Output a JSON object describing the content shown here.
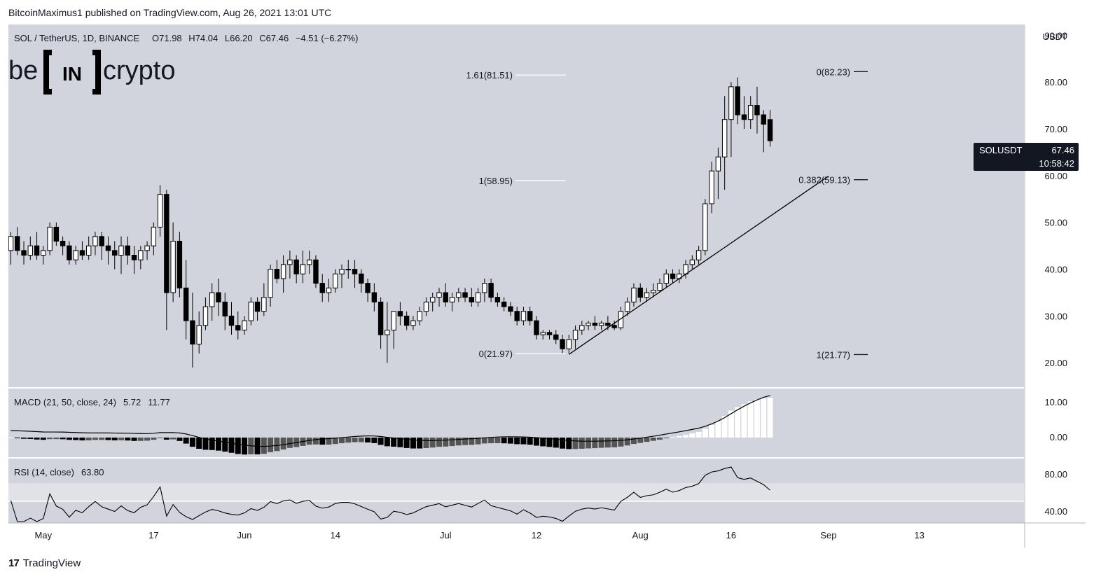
{
  "header": {
    "publisher": "BitcoinMaximus1 published on TradingView.com, Aug 26, 2021 13:01 UTC"
  },
  "legend": {
    "symbol": "SOL / TetherUS, 1D, BINANCE",
    "o_label": "O",
    "o": "71.98",
    "h_label": "H",
    "h": "74.04",
    "l_label": "L",
    "l": "66.20",
    "c_label": "C",
    "c": "67.46",
    "change": "−4.51 (−6.27%)"
  },
  "logo": {
    "left": "be",
    "mid": "IN",
    "right": "crypto"
  },
  "price_tag": {
    "symbol": "SOLUSDT",
    "price": "67.46",
    "countdown": "10:58:42"
  },
  "macd": {
    "label": "MACD (21, 50, close, 24)",
    "v1": "5.72",
    "v2": "11.77"
  },
  "rsi": {
    "label": "RSI (14, close)",
    "value": "63.80"
  },
  "footer": {
    "brand": "TradingView"
  },
  "colors": {
    "bg": "#d1d4dc",
    "up": "#ffffff",
    "down": "#000000",
    "grid_text": "#131722",
    "tag_bg": "#131722"
  },
  "chart_data": {
    "type": "candlestick",
    "title": "SOL / TetherUS, 1D, BINANCE",
    "currency_label": "USDT",
    "price_ticks": [
      20,
      30,
      40,
      50,
      60,
      70,
      80,
      90
    ],
    "price_tick_labels": [
      "20.00",
      "30.00",
      "40.00",
      "50.00",
      "60.00",
      "70.00",
      "80.00",
      "90.00"
    ],
    "ylim": [
      14.8,
      92.3
    ],
    "macd_ticks": [
      "0.00",
      "10.00"
    ],
    "rsi_ticks": [
      "40.00",
      "80.00"
    ],
    "x_labels": [
      "May",
      "17",
      "Jun",
      "14",
      "Jul",
      "12",
      "Aug",
      "16",
      "Sep",
      "13"
    ],
    "candles_ohlc": [
      [
        44,
        48,
        41,
        47
      ],
      [
        47,
        49,
        43,
        44
      ],
      [
        44,
        46,
        41,
        43
      ],
      [
        43,
        47,
        42,
        45
      ],
      [
        45,
        48,
        42,
        43
      ],
      [
        43,
        45,
        41,
        44
      ],
      [
        44,
        50,
        43,
        49
      ],
      [
        49,
        50,
        45,
        46
      ],
      [
        46,
        47,
        43,
        45
      ],
      [
        45,
        46,
        41,
        42
      ],
      [
        42,
        45,
        41,
        44
      ],
      [
        44,
        46,
        42,
        43
      ],
      [
        43,
        47,
        42,
        45
      ],
      [
        45,
        48,
        43,
        47
      ],
      [
        47,
        48,
        42,
        45
      ],
      [
        45,
        47,
        41,
        44
      ],
      [
        44,
        46,
        40,
        43
      ],
      [
        43,
        47,
        39,
        45
      ],
      [
        45,
        47,
        41,
        43
      ],
      [
        43,
        45,
        39,
        42
      ],
      [
        42,
        45,
        40,
        44
      ],
      [
        44,
        46,
        42,
        45
      ],
      [
        45,
        50,
        43,
        49
      ],
      [
        49,
        58,
        47,
        56
      ],
      [
        56,
        57,
        27,
        35
      ],
      [
        35,
        50,
        33,
        46
      ],
      [
        46,
        48,
        34,
        36
      ],
      [
        36,
        42,
        25,
        29
      ],
      [
        29,
        35,
        19,
        24
      ],
      [
        24,
        31,
        22,
        28
      ],
      [
        28,
        34,
        27,
        32
      ],
      [
        32,
        37,
        29,
        35
      ],
      [
        35,
        38,
        30,
        33
      ],
      [
        33,
        35,
        27,
        30
      ],
      [
        30,
        33,
        26,
        28
      ],
      [
        28,
        31,
        25,
        27
      ],
      [
        27,
        30,
        26,
        29
      ],
      [
        29,
        34,
        28,
        33
      ],
      [
        33,
        34,
        29,
        31
      ],
      [
        31,
        37,
        30,
        34
      ],
      [
        34,
        41,
        32,
        40
      ],
      [
        40,
        42,
        37,
        38
      ],
      [
        38,
        43,
        35,
        41
      ],
      [
        41,
        44,
        38,
        42
      ],
      [
        42,
        43,
        37,
        39
      ],
      [
        39,
        44,
        37,
        41
      ],
      [
        41,
        44,
        39,
        42
      ],
      [
        42,
        43,
        36,
        37
      ],
      [
        37,
        39,
        33,
        35
      ],
      [
        35,
        38,
        33,
        36
      ],
      [
        36,
        40,
        35,
        39
      ],
      [
        39,
        41,
        36,
        40
      ],
      [
        40,
        42,
        38,
        40
      ],
      [
        40,
        42,
        36,
        39
      ],
      [
        39,
        40,
        35,
        37
      ],
      [
        37,
        38,
        33,
        35
      ],
      [
        35,
        37,
        31,
        33
      ],
      [
        33,
        34,
        23,
        26
      ],
      [
        26,
        33,
        20,
        27
      ],
      [
        27,
        30,
        23,
        31
      ],
      [
        31,
        33,
        28,
        30
      ],
      [
        30,
        31,
        27,
        28
      ],
      [
        28,
        30,
        27,
        29
      ],
      [
        29,
        32,
        28,
        31
      ],
      [
        31,
        34,
        30,
        33
      ],
      [
        33,
        35,
        31,
        34
      ],
      [
        34,
        36,
        32,
        35
      ],
      [
        35,
        37,
        32,
        33
      ],
      [
        33,
        35,
        31,
        34
      ],
      [
        34,
        36,
        33,
        35
      ],
      [
        35,
        36,
        33,
        34
      ],
      [
        34,
        36,
        32,
        33
      ],
      [
        33,
        36,
        32,
        35
      ],
      [
        35,
        38,
        33,
        37
      ],
      [
        37,
        38,
        33,
        34
      ],
      [
        34,
        35,
        32,
        33
      ],
      [
        33,
        34,
        31,
        32
      ],
      [
        32,
        33,
        30,
        31
      ],
      [
        31,
        32,
        28,
        29
      ],
      [
        29,
        32,
        28,
        31
      ],
      [
        31,
        32,
        28,
        29
      ],
      [
        29,
        30,
        25,
        26
      ],
      [
        26,
        27,
        25,
        26.5
      ],
      [
        26.5,
        27,
        25,
        26
      ],
      [
        26,
        27,
        24,
        25
      ],
      [
        25,
        26,
        22,
        23
      ],
      [
        23,
        26,
        22,
        25
      ],
      [
        25,
        28,
        23,
        27
      ],
      [
        27,
        29,
        26,
        28
      ],
      [
        28,
        29,
        27,
        28.5
      ],
      [
        28.5,
        30,
        27,
        28
      ],
      [
        28,
        29,
        27,
        28.5
      ],
      [
        28.5,
        30,
        27,
        28
      ],
      [
        28,
        29,
        27,
        27.5
      ],
      [
        27.5,
        32,
        27,
        31
      ],
      [
        31,
        34,
        30,
        33
      ],
      [
        33,
        37,
        32,
        36
      ],
      [
        36,
        37,
        33,
        34
      ],
      [
        34,
        36,
        33,
        35
      ],
      [
        35,
        37,
        34,
        35.5
      ],
      [
        35.5,
        38,
        35,
        37
      ],
      [
        37,
        40,
        36,
        39
      ],
      [
        39,
        40,
        37,
        38
      ],
      [
        38,
        40,
        37,
        39
      ],
      [
        39,
        42,
        38,
        41
      ],
      [
        41,
        43,
        40,
        42
      ],
      [
        42,
        45,
        41,
        44
      ],
      [
        44,
        55,
        43,
        54
      ],
      [
        54,
        63,
        52,
        61
      ],
      [
        61,
        66,
        55,
        64
      ],
      [
        64,
        77,
        57,
        72
      ],
      [
        72,
        80,
        64,
        79
      ],
      [
        79,
        81,
        71,
        73
      ],
      [
        73,
        77,
        70,
        72
      ],
      [
        72,
        77,
        70,
        75
      ],
      [
        75,
        79,
        69,
        73
      ],
      [
        73,
        74,
        65,
        71
      ],
      [
        71.98,
        74.04,
        66.2,
        67.46
      ]
    ],
    "trendline": {
      "from": [
        86,
        21.8
      ],
      "to": [
        126,
        59.9
      ]
    },
    "fib_left": [
      {
        "label": "1.61(81.51)",
        "value": 81.51
      },
      {
        "label": "1(58.95)",
        "value": 58.95
      },
      {
        "label": "0(21.97)",
        "value": 21.97
      }
    ],
    "fib_right": [
      {
        "label": "0(82.23)",
        "value": 82.23
      },
      {
        "label": "0.382(59.13)",
        "value": 59.13
      },
      {
        "label": "1(21.77)",
        "value": 21.77
      }
    ]
  }
}
